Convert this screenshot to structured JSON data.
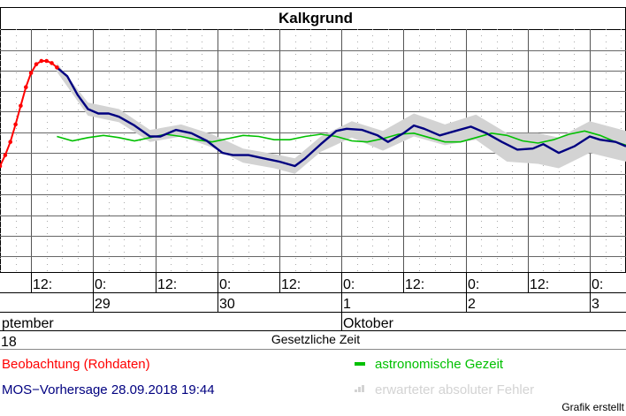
{
  "chart_data": {
    "type": "line",
    "title": "Kalkgrund",
    "x_axis": {
      "label": "Gesetzliche Zeit",
      "range": [
        "2018-09-28T06:00",
        "2018-10-03T07:00"
      ],
      "tick_labels": [
        "12:",
        "0:",
        "12:",
        "0:",
        "12:",
        "0:",
        "12:",
        "0:",
        "12:",
        "0:"
      ],
      "day_labels": [
        "29",
        "30",
        "1",
        "2",
        "3"
      ],
      "month_labels": [
        "ptember",
        "Oktober"
      ],
      "year_label": "18"
    },
    "y_axis": {
      "tick_labels": [],
      "grid": true
    },
    "series": [
      {
        "name": "Beobachtung (Rohdaten)",
        "color": "#ff0000",
        "points": [
          [
            "2018-09-28T06:00",
            0.0
          ],
          [
            "2018-09-28T07:00",
            0.1
          ],
          [
            "2018-09-28T08:00",
            0.22
          ],
          [
            "2018-09-28T09:00",
            0.38
          ],
          [
            "2018-09-28T10:00",
            0.55
          ],
          [
            "2018-09-28T11:00",
            0.72
          ],
          [
            "2018-09-28T12:00",
            0.85
          ],
          [
            "2018-09-28T13:00",
            0.93
          ],
          [
            "2018-09-28T14:00",
            0.96
          ],
          [
            "2018-09-28T15:00",
            0.96
          ],
          [
            "2018-09-28T16:00",
            0.94
          ],
          [
            "2018-09-28T17:00",
            0.9
          ]
        ]
      },
      {
        "name": "MOS-Vorhersage",
        "issued": "28.09.2018 19:44",
        "color": "#000080",
        "points": [
          [
            "2018-09-28T17:00",
            0.9
          ],
          [
            "2018-09-28T19:00",
            0.82
          ],
          [
            "2018-09-28T21:00",
            0.65
          ],
          [
            "2018-09-28T23:00",
            0.52
          ],
          [
            "2018-09-29T01:00",
            0.48
          ],
          [
            "2018-09-29T03:00",
            0.48
          ],
          [
            "2018-09-29T05:00",
            0.45
          ],
          [
            "2018-09-29T08:00",
            0.37
          ],
          [
            "2018-09-29T11:00",
            0.27
          ],
          [
            "2018-09-29T13:00",
            0.27
          ],
          [
            "2018-09-29T16:00",
            0.33
          ],
          [
            "2018-09-29T19:00",
            0.3
          ],
          [
            "2018-09-29T22:00",
            0.23
          ],
          [
            "2018-09-30T01:00",
            0.12
          ],
          [
            "2018-09-30T03:00",
            0.1
          ],
          [
            "2018-09-30T06:00",
            0.1
          ],
          [
            "2018-09-30T09:00",
            0.07
          ],
          [
            "2018-09-30T12:00",
            0.04
          ],
          [
            "2018-09-30T15:00",
            0.0
          ],
          [
            "2018-09-30T17:00",
            0.07
          ],
          [
            "2018-09-30T20:00",
            0.2
          ],
          [
            "2018-09-30T23:00",
            0.32
          ],
          [
            "2018-10-01T01:00",
            0.34
          ],
          [
            "2018-10-01T04:00",
            0.33
          ],
          [
            "2018-10-01T07:00",
            0.28
          ],
          [
            "2018-10-01T09:00",
            0.22
          ],
          [
            "2018-10-01T12:00",
            0.3
          ],
          [
            "2018-10-01T14:00",
            0.37
          ],
          [
            "2018-10-01T16:00",
            0.34
          ],
          [
            "2018-10-01T19:00",
            0.28
          ],
          [
            "2018-10-01T22:00",
            0.32
          ],
          [
            "2018-10-02T01:00",
            0.36
          ],
          [
            "2018-10-02T04:00",
            0.3
          ],
          [
            "2018-10-02T07:00",
            0.22
          ],
          [
            "2018-10-02T10:00",
            0.15
          ],
          [
            "2018-10-02T13:00",
            0.16
          ],
          [
            "2018-10-02T15:00",
            0.2
          ],
          [
            "2018-10-02T18:00",
            0.12
          ],
          [
            "2018-10-02T21:00",
            0.18
          ],
          [
            "2018-10-03T00:00",
            0.27
          ],
          [
            "2018-10-03T02:00",
            0.24
          ],
          [
            "2018-10-03T05:00",
            0.22
          ],
          [
            "2018-10-03T07:00",
            0.18
          ]
        ]
      },
      {
        "name": "astronomische Gezeit",
        "color": "#00c000",
        "points": [
          [
            "2018-09-28T17:00",
            0.27
          ],
          [
            "2018-09-28T20:00",
            0.23
          ],
          [
            "2018-09-28T23:00",
            0.26
          ],
          [
            "2018-09-29T02:00",
            0.28
          ],
          [
            "2018-09-29T05:00",
            0.26
          ],
          [
            "2018-09-29T08:00",
            0.23
          ],
          [
            "2018-09-29T11:00",
            0.26
          ],
          [
            "2018-09-29T14:00",
            0.29
          ],
          [
            "2018-09-29T17:00",
            0.27
          ],
          [
            "2018-09-29T20:00",
            0.24
          ],
          [
            "2018-09-29T23:00",
            0.22
          ],
          [
            "2018-09-30T02:00",
            0.25
          ],
          [
            "2018-09-30T05:00",
            0.28
          ],
          [
            "2018-09-30T08:00",
            0.27
          ],
          [
            "2018-09-30T11:00",
            0.24
          ],
          [
            "2018-09-30T14:00",
            0.24
          ],
          [
            "2018-09-30T17:00",
            0.27
          ],
          [
            "2018-09-30T20:00",
            0.29
          ],
          [
            "2018-09-30T23:00",
            0.27
          ],
          [
            "2018-10-01T02:00",
            0.23
          ],
          [
            "2018-10-01T05:00",
            0.22
          ],
          [
            "2018-10-01T08:00",
            0.25
          ],
          [
            "2018-10-01T11:00",
            0.29
          ],
          [
            "2018-10-01T14:00",
            0.3
          ],
          [
            "2018-10-01T17:00",
            0.26
          ],
          [
            "2018-10-01T20:00",
            0.22
          ],
          [
            "2018-10-01T23:00",
            0.22
          ],
          [
            "2018-10-02T02:00",
            0.26
          ],
          [
            "2018-10-02T05:00",
            0.3
          ],
          [
            "2018-10-02T08:00",
            0.28
          ],
          [
            "2018-10-02T11:00",
            0.23
          ],
          [
            "2018-10-02T14:00",
            0.21
          ],
          [
            "2018-10-02T17:00",
            0.24
          ],
          [
            "2018-10-02T20:00",
            0.29
          ],
          [
            "2018-10-02T23:00",
            0.32
          ],
          [
            "2018-10-03T02:00",
            0.28
          ],
          [
            "2018-10-03T05:00",
            0.22
          ],
          [
            "2018-10-03T07:00",
            0.19
          ]
        ]
      },
      {
        "name": "erwarteter absoluter Fehler",
        "color": "#d3d3d3",
        "band": [
          [
            "2018-09-28T17:00",
            0.86,
            0.94
          ],
          [
            "2018-09-28T23:00",
            0.46,
            0.58
          ],
          [
            "2018-09-29T05:00",
            0.4,
            0.52
          ],
          [
            "2018-09-29T11:00",
            0.22,
            0.33
          ],
          [
            "2018-09-29T17:00",
            0.27,
            0.38
          ],
          [
            "2018-09-29T23:00",
            0.17,
            0.29
          ],
          [
            "2018-09-30T05:00",
            0.03,
            0.16
          ],
          [
            "2018-09-30T11:00",
            -0.02,
            0.11
          ],
          [
            "2018-09-30T15:00",
            -0.07,
            0.07
          ],
          [
            "2018-09-30T20:00",
            0.13,
            0.27
          ],
          [
            "2018-10-01T02:00",
            0.26,
            0.41
          ],
          [
            "2018-10-01T08:00",
            0.14,
            0.32
          ],
          [
            "2018-10-01T14:00",
            0.27,
            0.48
          ],
          [
            "2018-10-01T20:00",
            0.19,
            0.38
          ],
          [
            "2018-10-02T02:00",
            0.24,
            0.47
          ],
          [
            "2018-10-02T08:00",
            0.04,
            0.3
          ],
          [
            "2018-10-02T14:00",
            0.02,
            0.3
          ],
          [
            "2018-10-02T18:00",
            -0.02,
            0.26
          ],
          [
            "2018-10-03T00:00",
            0.12,
            0.41
          ],
          [
            "2018-10-03T07:00",
            0.04,
            0.32
          ]
        ]
      }
    ],
    "legend": [
      {
        "label": "Beobachtung (Rohdaten)",
        "color": "#ff0000",
        "position": "bottom-left"
      },
      {
        "label": "MOS−Vorhersage  28.09.2018 19:44",
        "color": "#000080",
        "position": "bottom-left"
      },
      {
        "label": "astronomische Gezeit",
        "color": "#00c000",
        "position": "bottom-right"
      },
      {
        "label": "erwarteter absoluter Fehler",
        "color": "#d3d3d3",
        "position": "bottom-right"
      }
    ],
    "footer": "Grafik erstellt"
  }
}
